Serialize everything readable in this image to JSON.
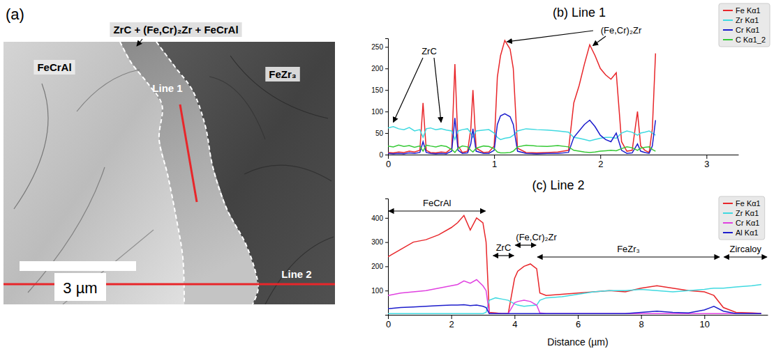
{
  "panel_a": {
    "label": "(a)",
    "callout": "ZrC + (Fe,Cr)₂Zr + FeCrAl",
    "regions": [
      "FeCrAl",
      "FeZr₃"
    ],
    "lines": [
      "Line 1",
      "Line 2"
    ],
    "scale_bar": "3 µm"
  },
  "chart_data": [
    {
      "type": "line",
      "title": "(b) Line 1",
      "x": [
        0,
        0.05,
        0.1,
        0.15,
        0.2,
        0.25,
        0.3,
        0.33,
        0.36,
        0.4,
        0.45,
        0.5,
        0.55,
        0.6,
        0.63,
        0.66,
        0.7,
        0.75,
        0.78,
        0.8,
        0.83,
        0.9,
        0.95,
        1.0,
        1.03,
        1.06,
        1.1,
        1.15,
        1.18,
        1.22,
        1.3,
        1.4,
        1.5,
        1.6,
        1.7,
        1.75,
        1.8,
        1.85,
        1.9,
        1.95,
        2.0,
        2.05,
        2.1,
        2.15,
        2.2,
        2.25,
        2.3,
        2.35,
        2.38,
        2.42,
        2.46,
        2.49,
        2.52
      ],
      "series": [
        {
          "name": "Fe Kα1",
          "color": "#e8262a",
          "values": [
            5,
            4,
            6,
            5,
            8,
            6,
            10,
            120,
            10,
            5,
            4,
            6,
            5,
            15,
            210,
            20,
            5,
            8,
            60,
            150,
            15,
            5,
            6,
            20,
            180,
            230,
            265,
            245,
            200,
            15,
            5,
            4,
            5,
            6,
            10,
            120,
            160,
            210,
            255,
            230,
            200,
            185,
            175,
            190,
            30,
            8,
            10,
            100,
            20,
            10,
            5,
            60,
            235
          ]
        },
        {
          "name": "Zr Kα1",
          "color": "#3fd9e0",
          "values": [
            62,
            65,
            60,
            58,
            63,
            55,
            58,
            40,
            60,
            62,
            58,
            60,
            57,
            55,
            35,
            55,
            58,
            60,
            50,
            40,
            55,
            57,
            58,
            50,
            40,
            35,
            38,
            40,
            45,
            55,
            60,
            58,
            57,
            55,
            52,
            40,
            38,
            35,
            32,
            35,
            38,
            40,
            40,
            38,
            50,
            55,
            52,
            45,
            50,
            52,
            55,
            50,
            45
          ]
        },
        {
          "name": "Cr Kα1",
          "color": "#1c1ccc",
          "values": [
            3,
            2,
            3,
            2,
            4,
            3,
            5,
            30,
            5,
            3,
            2,
            3,
            2,
            8,
            85,
            10,
            3,
            4,
            25,
            60,
            8,
            3,
            3,
            10,
            70,
            90,
            95,
            88,
            70,
            8,
            3,
            2,
            3,
            3,
            5,
            40,
            55,
            70,
            80,
            65,
            45,
            35,
            30,
            50,
            10,
            3,
            4,
            25,
            8,
            5,
            3,
            20,
            80
          ]
        },
        {
          "name": "C Kα1_2",
          "color": "#35c935",
          "values": [
            20,
            18,
            22,
            19,
            21,
            17,
            20,
            8,
            22,
            20,
            18,
            21,
            19,
            12,
            5,
            15,
            20,
            18,
            10,
            6,
            15,
            20,
            19,
            14,
            6,
            4,
            4,
            5,
            8,
            18,
            22,
            20,
            19,
            21,
            18,
            10,
            8,
            6,
            5,
            6,
            8,
            9,
            10,
            9,
            14,
            18,
            16,
            10,
            15,
            17,
            18,
            12,
            8
          ]
        }
      ],
      "xlim": [
        0,
        3.3
      ],
      "xticks": [
        0,
        1,
        2,
        3
      ],
      "ylim": [
        0,
        270
      ],
      "yticks": [
        0,
        50,
        100,
        150,
        200,
        250
      ],
      "legend": "top-right",
      "annotations": [
        {
          "text": "ZrC",
          "points": [
            [
              0.05,
              75
            ],
            [
              0.5,
              75
            ]
          ]
        },
        {
          "text": "(Fe,Cr)₂Zr",
          "points": [
            [
              1.12,
              262
            ],
            [
              1.93,
              253
            ]
          ]
        }
      ]
    },
    {
      "type": "line",
      "title": "(c) Line 2",
      "x_label": "Distance (µm)",
      "x": [
        0,
        0.4,
        0.8,
        1.2,
        1.6,
        2.0,
        2.2,
        2.4,
        2.6,
        2.8,
        3.0,
        3.1,
        3.2,
        3.4,
        3.6,
        3.8,
        4.0,
        4.1,
        4.3,
        4.5,
        4.7,
        4.8,
        5.0,
        5.5,
        6.0,
        6.5,
        7.0,
        7.5,
        8.0,
        8.5,
        9.0,
        9.5,
        10.0,
        10.3,
        10.6,
        11.0,
        11.5,
        11.8
      ],
      "series": [
        {
          "name": "Fe Kα1",
          "color": "#e8262a",
          "values": [
            240,
            270,
            300,
            310,
            330,
            360,
            380,
            410,
            350,
            400,
            380,
            300,
            10,
            8,
            5,
            5,
            150,
            180,
            200,
            210,
            190,
            90,
            80,
            85,
            90,
            95,
            100,
            95,
            110,
            120,
            110,
            100,
            95,
            80,
            30,
            10,
            8,
            6
          ]
        },
        {
          "name": "Zr Kα1",
          "color": "#3fd9e0",
          "values": [
            5,
            5,
            5,
            5,
            5,
            5,
            5,
            5,
            5,
            5,
            5,
            10,
            60,
            70,
            65,
            60,
            45,
            40,
            35,
            38,
            40,
            60,
            70,
            75,
            85,
            95,
            100,
            100,
            105,
            100,
            95,
            100,
            105,
            110,
            110,
            115,
            120,
            125
          ]
        },
        {
          "name": "Cr Kα1",
          "color": "#e040e0",
          "values": [
            80,
            90,
            95,
            100,
            110,
            120,
            125,
            140,
            130,
            145,
            120,
            100,
            5,
            5,
            5,
            5,
            50,
            55,
            60,
            55,
            40,
            8,
            5,
            5,
            5,
            5,
            5,
            5,
            5,
            5,
            5,
            5,
            5,
            5,
            5,
            5,
            5,
            5
          ]
        },
        {
          "name": "Al Kα1",
          "color": "#1c1ccc",
          "values": [
            25,
            30,
            32,
            35,
            38,
            40,
            40,
            42,
            38,
            40,
            35,
            30,
            5,
            5,
            5,
            5,
            5,
            5,
            5,
            5,
            5,
            5,
            5,
            5,
            5,
            5,
            5,
            5,
            10,
            15,
            10,
            8,
            20,
            35,
            15,
            5,
            5,
            5
          ]
        }
      ],
      "xlim": [
        0,
        12
      ],
      "xticks": [
        0,
        2,
        4,
        6,
        8,
        10
      ],
      "ylim": [
        0,
        480
      ],
      "yticks": [
        100,
        200,
        300,
        400
      ],
      "legend": "top-right",
      "annotations": [
        {
          "text": "FeCrAl",
          "x": [
            0,
            3.1
          ]
        },
        {
          "text": "ZrC",
          "x": [
            3.3,
            4.0
          ]
        },
        {
          "text": "(Fe,Cr)₂Zr",
          "x": [
            4.0,
            4.7
          ]
        },
        {
          "text": "FeZr₃",
          "x": [
            4.7,
            10.5
          ]
        },
        {
          "text": "Zircaloy",
          "x": [
            10.6,
            12
          ]
        }
      ]
    }
  ]
}
